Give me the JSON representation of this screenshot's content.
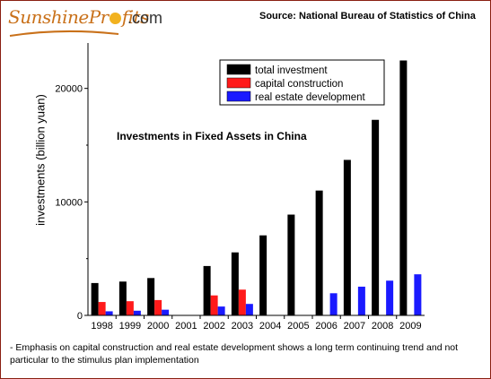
{
  "brand": {
    "name_part1": "SunshinePr",
    "name_part2": "fits",
    "name_part3": ".com",
    "accent": "#c9711a"
  },
  "source": "Source: National Bureau of Statistics of China",
  "note": "- Emphasis on capital construction and real estate development shows a long term continuing trend and not particular to the stimulus plan implementation",
  "chart_data": {
    "type": "bar",
    "title": "Investments in Fixed Assets in China",
    "xlabel": "",
    "ylabel": "investments (billion yuan)",
    "ylim": [
      0,
      24000
    ],
    "yticks": [
      0,
      10000,
      20000
    ],
    "ytick_labels": [
      "0",
      "10000",
      "20000"
    ],
    "categories": [
      "1998",
      "1999",
      "2000",
      "2001",
      "2002",
      "2003",
      "2004",
      "2005",
      "2006",
      "2007",
      "2008",
      "2009"
    ],
    "legend_position": "top-right",
    "grid": false,
    "series": [
      {
        "name": "total investment",
        "color": "#000000",
        "values": [
          2850,
          2980,
          3290,
          null,
          4350,
          5550,
          7050,
          8880,
          11000,
          13700,
          17230,
          22460
        ]
      },
      {
        "name": "capital construction",
        "color": "#ff1a1a",
        "values": [
          1180,
          1250,
          1350,
          null,
          1760,
          2270,
          null,
          null,
          null,
          null,
          null,
          null
        ]
      },
      {
        "name": "real estate development",
        "color": "#1a1aff",
        "values": [
          360,
          410,
          500,
          null,
          780,
          1010,
          null,
          null,
          1950,
          2530,
          3060,
          3620
        ]
      }
    ]
  }
}
